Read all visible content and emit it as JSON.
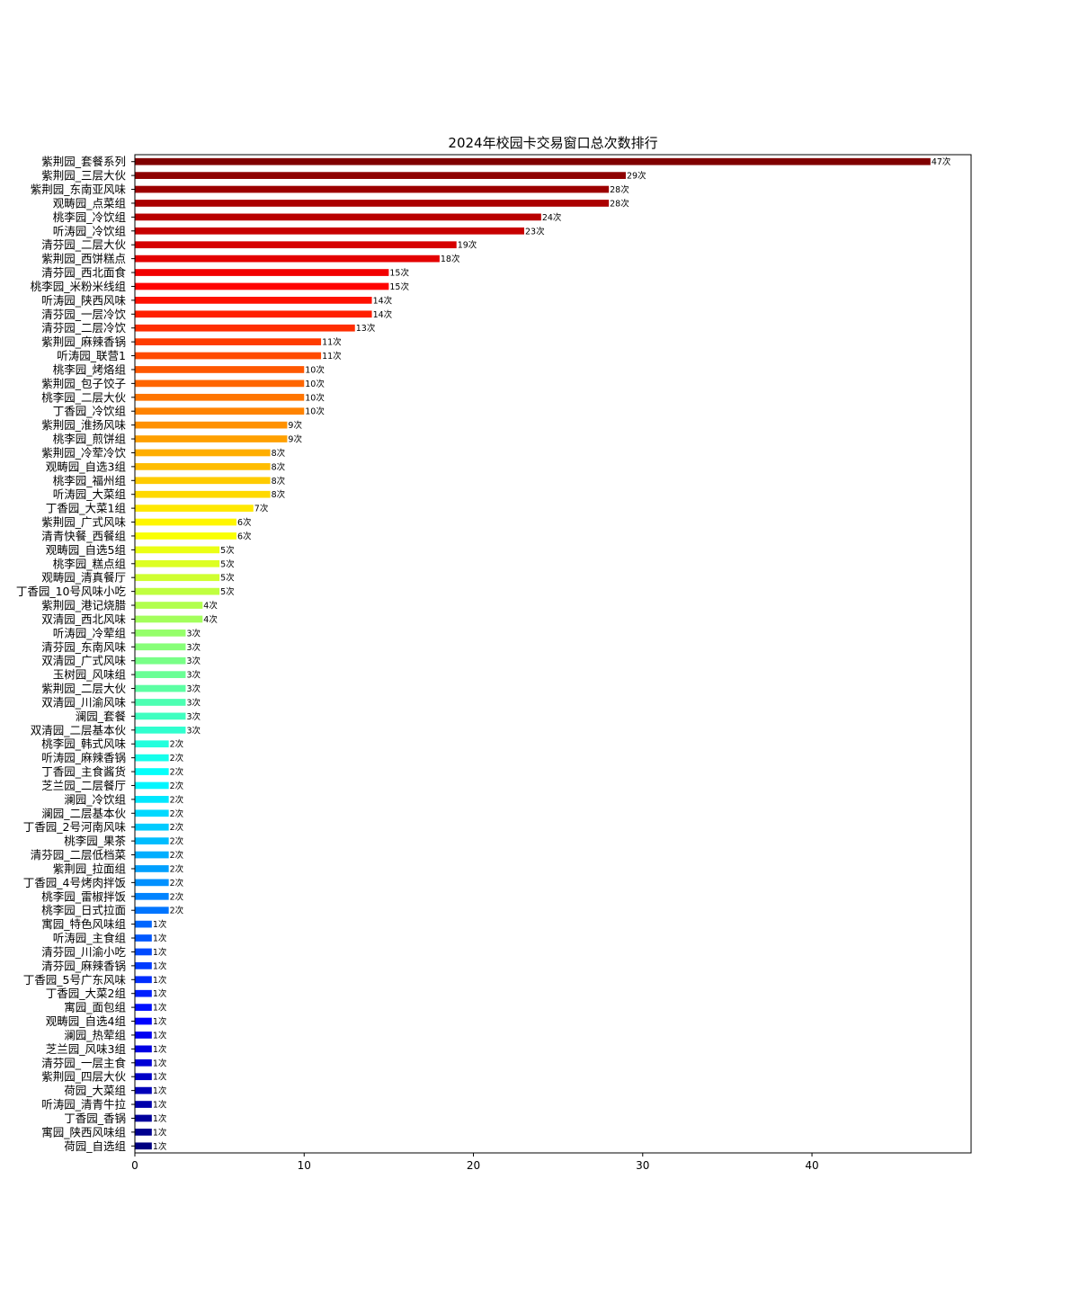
{
  "chart_data": {
    "type": "bar",
    "orientation": "horizontal",
    "title": "2024年校园卡交易窗口总次数排行",
    "xlabel": "",
    "ylabel": "",
    "xlim": [
      0,
      49.4
    ],
    "xticks": [
      0,
      10,
      20,
      30,
      40
    ],
    "value_suffix": "次",
    "grid": false,
    "colormap": "jet (reversed, top = dark red, bottom = dark blue)",
    "categories": [
      "紫荆园_套餐系列",
      "紫荆园_三层大伙",
      "紫荆园_东南亚风味",
      "观畴园_点菜组",
      "桃李园_冷饮组",
      "听涛园_冷饮组",
      "清芬园_二层大伙",
      "紫荆园_西饼糕点",
      "清芬园_西北面食",
      "桃李园_米粉米线组",
      "听涛园_陕西风味",
      "清芬园_一层冷饮",
      "清芬园_二层冷饮",
      "紫荆园_麻辣香锅",
      "听涛园_联营1",
      "桃李园_烤烙组",
      "紫荆园_包子饺子",
      "桃李园_二层大伙",
      "丁香园_冷饮组",
      "紫荆园_淮扬风味",
      "桃李园_煎饼组",
      "紫荆园_冷荤冷饮",
      "观畴园_自选3组",
      "桃李园_福州组",
      "听涛园_大菜组",
      "丁香园_大菜1组",
      "紫荆园_广式风味",
      "清青快餐_西餐组",
      "观畴园_自选5组",
      "桃李园_糕点组",
      "观畴园_清真餐厅",
      "丁香园_10号风味小吃",
      "紫荆园_港记烧腊",
      "双清园_西北风味",
      "听涛园_冷荤组",
      "清芬园_东南风味",
      "双清园_广式风味",
      "玉树园_风味组",
      "紫荆园_二层大伙",
      "双清园_川渝风味",
      "澜园_套餐",
      "双清园_二层基本伙",
      "桃李园_韩式风味",
      "听涛园_麻辣香锅",
      "丁香园_主食酱货",
      "芝兰园_二层餐厅",
      "澜园_冷饮组",
      "澜园_二层基本伙",
      "丁香园_2号河南风味",
      "桃李园_果茶",
      "清芬园_二层低档菜",
      "紫荆园_拉面组",
      "丁香园_4号烤肉拌饭",
      "桃李园_雷椒拌饭",
      "桃李园_日式拉面",
      "寓园_特色风味组",
      "听涛园_主食组",
      "清芬园_川渝小吃",
      "清芬园_麻辣香锅",
      "丁香园_5号广东风味",
      "丁香园_大菜2组",
      "寓园_面包组",
      "观畴园_自选4组",
      "澜园_热荤组",
      "芝兰园_风味3组",
      "清芬园_一层主食",
      "紫荆园_四层大伙",
      "荷园_大菜组",
      "听涛园_清青牛拉",
      "丁香园_香锅",
      "寓园_陕西风味组",
      "荷园_自选组"
    ],
    "values": [
      47,
      29,
      28,
      28,
      24,
      23,
      19,
      18,
      15,
      15,
      14,
      14,
      13,
      11,
      11,
      10,
      10,
      10,
      10,
      9,
      9,
      8,
      8,
      8,
      8,
      7,
      6,
      6,
      5,
      5,
      5,
      5,
      4,
      4,
      3,
      3,
      3,
      3,
      3,
      3,
      3,
      3,
      2,
      2,
      2,
      2,
      2,
      2,
      2,
      2,
      2,
      2,
      2,
      2,
      2,
      1,
      1,
      1,
      1,
      1,
      1,
      1,
      1,
      1,
      1,
      1,
      1,
      1,
      1,
      1,
      1,
      1
    ]
  }
}
